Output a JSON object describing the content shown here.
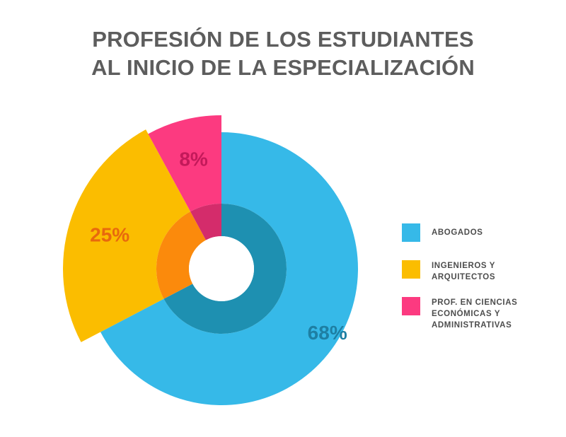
{
  "chart_data": {
    "type": "pie",
    "title_lines": [
      "PROFESIÓN DE LOS ESTUDIANTES",
      "AL INICIO DE LA ESPECIALIZACIÓN"
    ],
    "slices": [
      {
        "label_lines": [
          "ABOGADOS"
        ],
        "value": 68,
        "value_label": "68%",
        "color": "#36b9e8",
        "inner_color": "#1e90b1",
        "label_color": "#1e7fa3"
      },
      {
        "label_lines": [
          "INGENIEROS Y",
          "ARQUITECTOS"
        ],
        "value": 25,
        "value_label": "25%",
        "color": "#fbbd00",
        "inner_color": "#fb8a0c",
        "label_color": "#e8690d"
      },
      {
        "label_lines": [
          "PROF. EN CIENCIAS",
          "ECONÓMICAS Y",
          "ADMINISTRATIVAS"
        ],
        "value": 8,
        "value_label": "8%",
        "color": "#fc3a80",
        "inner_color": "#d42c6b",
        "label_color": "#c3195a"
      }
    ],
    "legend_position": "right"
  }
}
